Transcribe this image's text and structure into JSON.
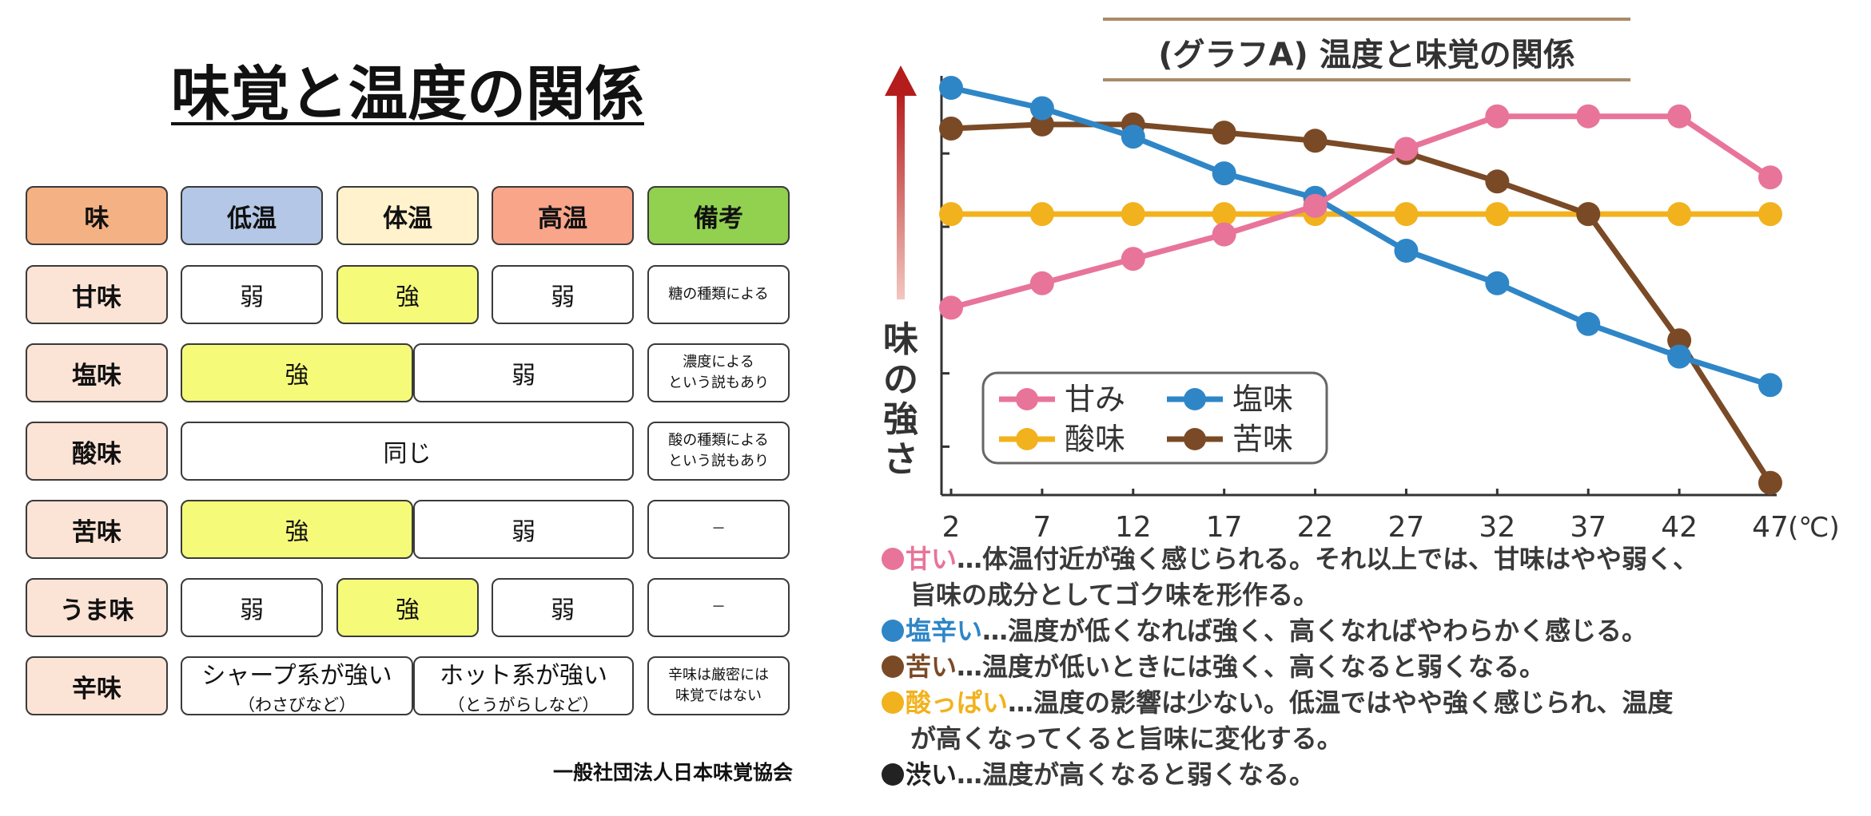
{
  "left": {
    "title": "味覚と温度の関係",
    "headers": [
      "味",
      "低温",
      "体温",
      "高温",
      "備考"
    ],
    "header_colors": [
      "#f4b183",
      "#b4c7e7",
      "#fff2cc",
      "#f8a58a",
      "#92d050"
    ],
    "rows": [
      {
        "label": "甘味",
        "low": "弱",
        "body": "強",
        "high": "弱",
        "note": "糖の種類による"
      },
      {
        "label": "塩味",
        "lowbody": "強",
        "high": "弱",
        "note": [
          "濃度による",
          "という説もあり"
        ]
      },
      {
        "label": "酸味",
        "all": "同じ",
        "note": [
          "酸の種類による",
          "という説もあり"
        ]
      },
      {
        "label": "苦味",
        "lowbody": "強",
        "high": "弱",
        "note": "－"
      },
      {
        "label": "うま味",
        "low": "弱",
        "body": "強",
        "high": "弱",
        "note": "－"
      },
      {
        "label": "辛味",
        "lowbody_main": "シャープ系が強い",
        "lowbody_sub": "（わさびなど）",
        "high_main": "ホット系が強い",
        "high_sub": "（とうがらしなど）",
        "note": [
          "辛味は厳密には",
          "味覚ではない"
        ]
      }
    ],
    "source": "一般社団法人日本味覚協会",
    "strong_color": "#f5fa78",
    "label_color": "#fbe3d6"
  },
  "graph": {
    "title": "(グラフA) 温度と味覚の関係",
    "y_label": "味の強さ",
    "x_unit": "(℃)",
    "notes": [
      {
        "color": "#e8749a",
        "key": "甘い",
        "text": "…体温付近が強く感じられる。それ以上では、甘味はやや弱く、"
      },
      {
        "color": "",
        "key": "",
        "text": "旨味の成分としてゴク味を形作る。"
      },
      {
        "color": "#2f86c7",
        "key": "塩辛い",
        "text": "…温度が低くなれば強く、高くなればやわらかく感じる。"
      },
      {
        "color": "#7a4a26",
        "key": "苦い",
        "text": "…温度が低いときには強く、高くなると弱くなる。"
      },
      {
        "color": "#f2b21d",
        "key": "酸っぱい",
        "text": "…温度の影響は少ない。低温ではやや強く感じられ、温度"
      },
      {
        "color": "",
        "key": "",
        "text": "が高くなってくると旨味に変化する。"
      },
      {
        "color": "#222222",
        "key": "渋い",
        "text": "…温度が高くなると弱くなる。"
      }
    ]
  },
  "chart_data": {
    "type": "line",
    "title": "(グラフA) 温度と味覚の関係",
    "xlabel": "(℃)",
    "ylabel": "味の強さ",
    "x": [
      2,
      7,
      12,
      17,
      22,
      27,
      32,
      37,
      42,
      47
    ],
    "ylim": [
      0,
      10
    ],
    "grid": false,
    "legend_position": "lower-left",
    "series": [
      {
        "name": "甘み",
        "color": "#e8749a",
        "values": [
          4.6,
          5.2,
          5.8,
          6.4,
          7.1,
          8.5,
          9.3,
          9.3,
          9.3,
          7.8
        ]
      },
      {
        "name": "塩味",
        "color": "#2f86c7",
        "values": [
          10.0,
          9.5,
          8.8,
          7.9,
          7.3,
          6.0,
          5.2,
          4.2,
          3.4,
          2.7
        ]
      },
      {
        "name": "酸味",
        "color": "#f2b21d",
        "values": [
          6.9,
          6.9,
          6.9,
          6.9,
          6.9,
          6.9,
          6.9,
          6.9,
          6.9,
          6.9
        ]
      },
      {
        "name": "苦味",
        "color": "#7a4a26",
        "values": [
          9.0,
          9.1,
          9.1,
          8.9,
          8.7,
          8.4,
          7.7,
          6.9,
          3.8,
          0.3
        ]
      }
    ]
  }
}
